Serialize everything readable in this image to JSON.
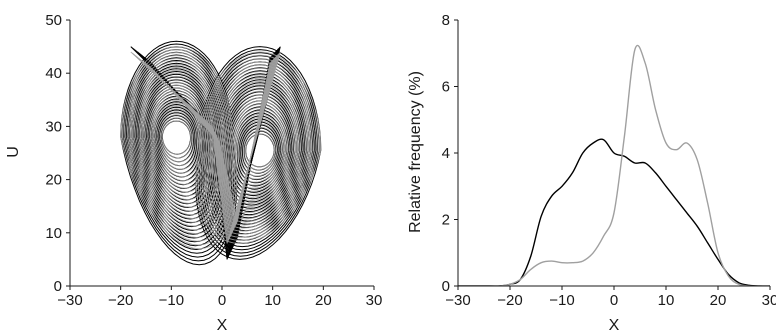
{
  "chart_data": [
    {
      "type": "scatter",
      "title": "",
      "xlabel": "X",
      "ylabel": "U",
      "xlim": [
        -30,
        30
      ],
      "ylim": [
        0,
        50
      ],
      "xticks": [
        -30,
        -20,
        -10,
        0,
        10,
        20,
        30
      ],
      "yticks": [
        0,
        10,
        20,
        30,
        40,
        50
      ],
      "grid": false,
      "series": [
        {
          "color": "#000000",
          "description_values": {
            "left_lobe_center": [
              -9,
              28
            ],
            "right_lobe_center": [
              7.5,
              25.5
            ],
            "x_range": [
              -19,
              27
            ],
            "y_range": [
              4,
              46
            ]
          }
        },
        {
          "color": "#a0a0a0",
          "description_values": {
            "left_lobe_center": [
              -9,
              28
            ],
            "right_lobe_center": [
              7.5,
              25.5
            ],
            "x_range": [
              -18,
              27
            ],
            "y_range": [
              7,
              45
            ]
          }
        }
      ]
    },
    {
      "type": "line",
      "title": "",
      "xlabel": "X",
      "ylabel": "Relative frequency (%)",
      "xlim": [
        -30,
        30
      ],
      "ylim": [
        0,
        8
      ],
      "xticks": [
        -30,
        -20,
        -10,
        0,
        10,
        20,
        30
      ],
      "yticks": [
        0,
        2,
        4,
        6,
        8
      ],
      "grid": false,
      "x": [
        -30,
        -24,
        -22,
        -20,
        -18,
        -16,
        -14,
        -12,
        -10,
        -8,
        -6,
        -4,
        -2,
        0,
        2,
        4,
        6,
        8,
        10,
        12,
        14,
        16,
        18,
        20,
        22,
        24,
        26,
        28,
        30
      ],
      "series": [
        {
          "color": "#000000",
          "values": [
            0,
            0,
            0,
            0.05,
            0.2,
            0.9,
            2.1,
            2.7,
            3.0,
            3.4,
            4.0,
            4.3,
            4.4,
            4.0,
            3.9,
            3.7,
            3.7,
            3.4,
            3.0,
            2.6,
            2.2,
            1.8,
            1.3,
            0.8,
            0.35,
            0.1,
            0.02,
            0,
            0
          ]
        },
        {
          "color": "#a0a0a0",
          "values": [
            0,
            0,
            0,
            0.05,
            0.2,
            0.5,
            0.7,
            0.75,
            0.7,
            0.7,
            0.75,
            1.0,
            1.5,
            2.2,
            4.5,
            7.1,
            6.7,
            5.3,
            4.3,
            4.1,
            4.3,
            3.8,
            2.5,
            1.0,
            0.3,
            0.05,
            0,
            0,
            0
          ]
        }
      ]
    }
  ]
}
